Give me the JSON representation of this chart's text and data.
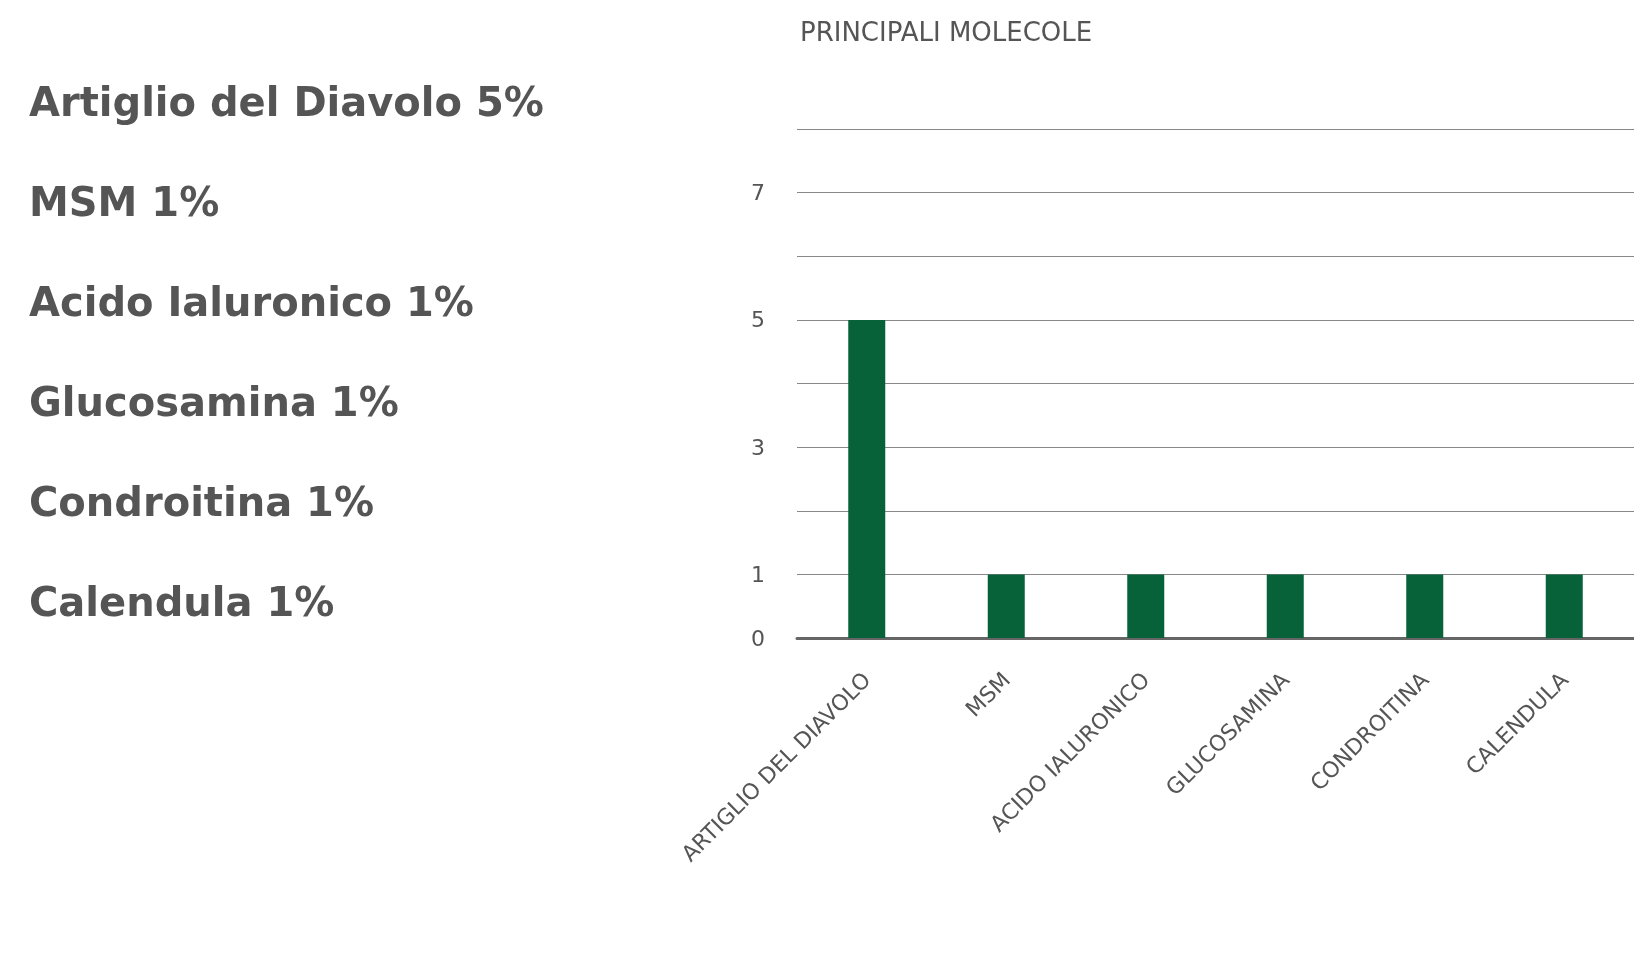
{
  "chart_data": {
    "type": "bar",
    "title": "PRINCIPALI MOLECOLE",
    "categories": [
      "ARTIGLIO DEL DIAVOLO",
      "MSM",
      "ACIDO IALURONICO",
      "GLUCOSAMINA",
      "CONDROITINA",
      "CALENDULA"
    ],
    "values": [
      5,
      1,
      1,
      1,
      1,
      1
    ],
    "color": "#07623a",
    "ylim": [
      0,
      8
    ],
    "yticks": [
      0,
      1,
      {
        "value": 2,
        "label": null
      },
      3,
      {
        "value": 4,
        "label": null
      },
      5,
      {
        "value": 6,
        "label": null
      },
      7,
      {
        "value": 8,
        "label": null
      }
    ],
    "grid": "y",
    "annotations": [
      "Artiglio del Diavolo 5%",
      "MSM 1%",
      "Acido Ialuronico 1%",
      "Glucosamina 1%",
      "Condroitina 1%",
      "Calendula 1%"
    ]
  }
}
